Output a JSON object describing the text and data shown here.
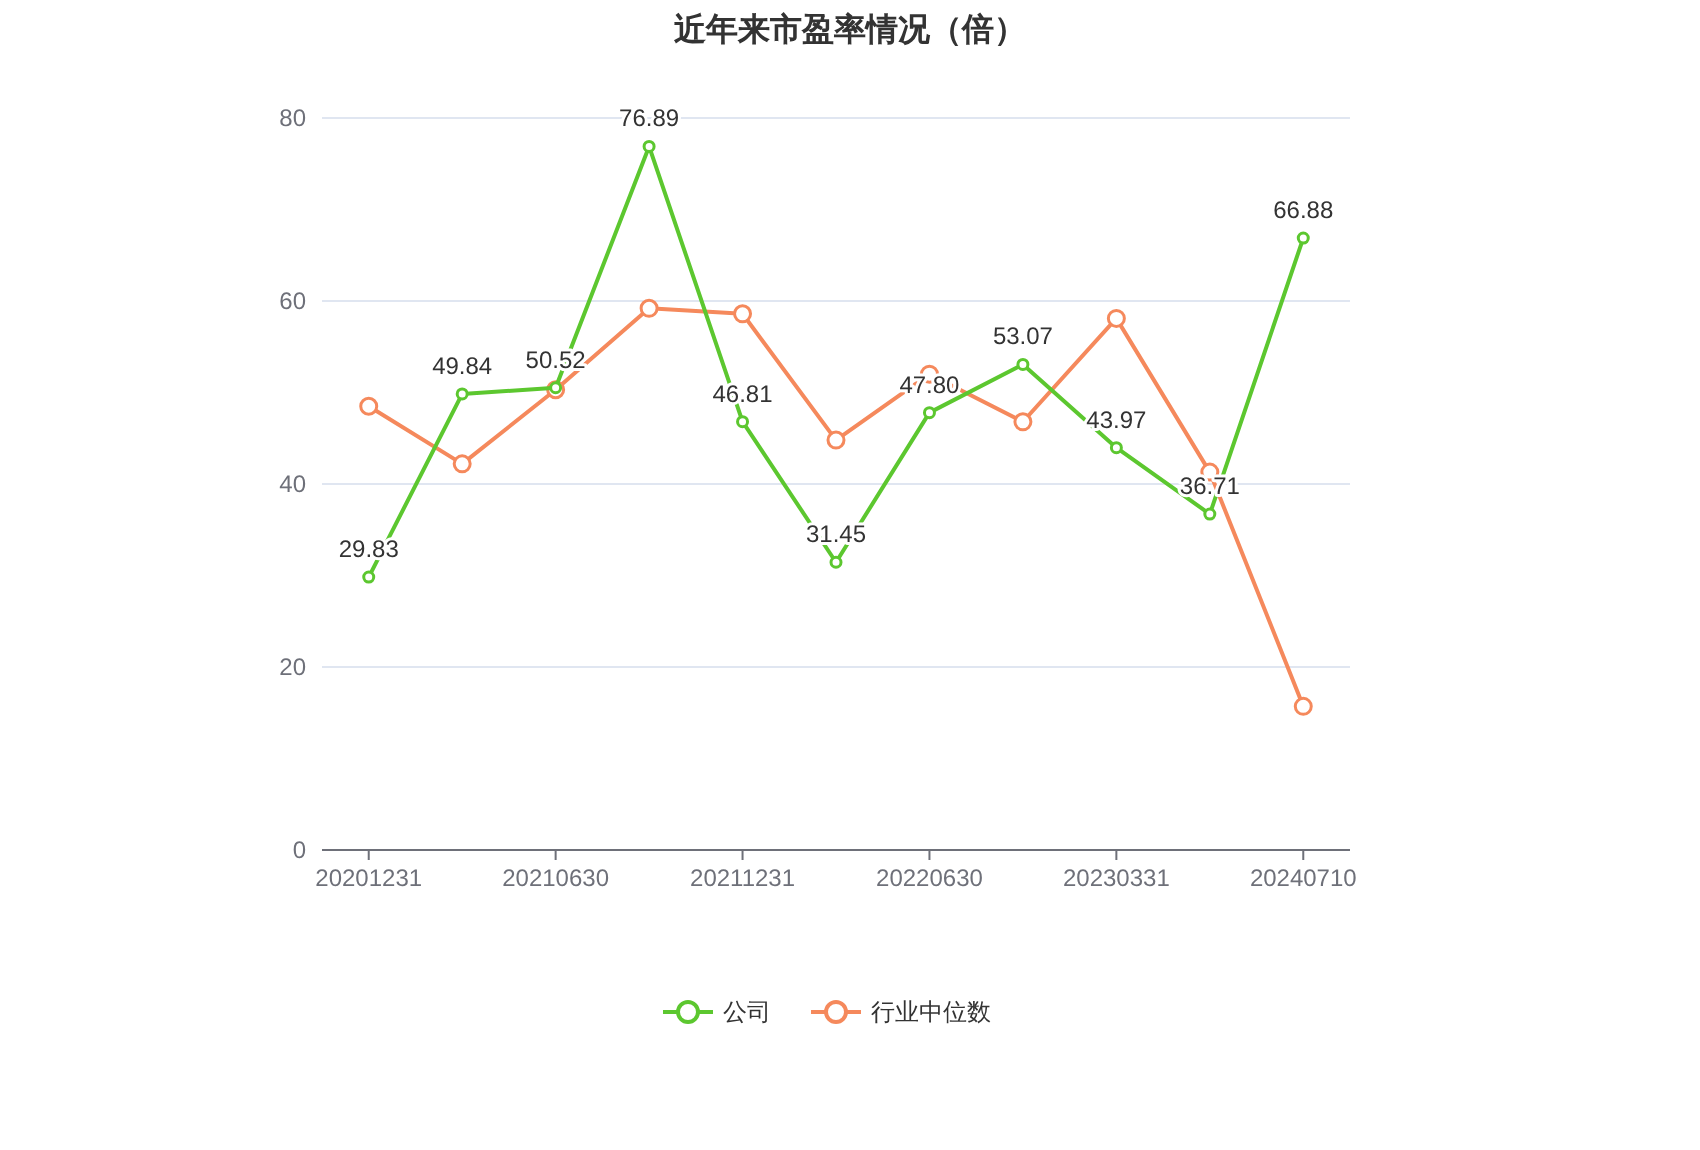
{
  "chart_data": {
    "type": "line",
    "title": "近年来市盈率情况（倍）",
    "categories": [
      "20201231",
      null,
      "20210630",
      null,
      "20211231",
      null,
      "20220630",
      null,
      "20230331",
      null,
      "20240710"
    ],
    "series": [
      {
        "name": "公司",
        "color": "#5cc72f",
        "values": [
          29.83,
          49.84,
          50.52,
          76.89,
          46.81,
          31.45,
          47.8,
          53.07,
          43.97,
          36.71,
          66.88
        ],
        "value_labels": [
          "29.83",
          "49.84",
          "50.52",
          "76.89",
          "46.81",
          "31.45",
          "47.80",
          "53.07",
          "43.97",
          "36.71",
          "66.88"
        ]
      },
      {
        "name": "行业中位数",
        "color": "#f5895c",
        "values": [
          48.5,
          42.2,
          50.3,
          59.2,
          58.6,
          44.8,
          52.0,
          46.8,
          58.1,
          41.3,
          15.7
        ]
      }
    ],
    "ylim": [
      0,
      80
    ],
    "yticks": [
      0,
      20,
      40,
      60,
      80
    ],
    "grid": "y",
    "legend": "bottom",
    "marker": "circle",
    "line_style": "solid"
  }
}
